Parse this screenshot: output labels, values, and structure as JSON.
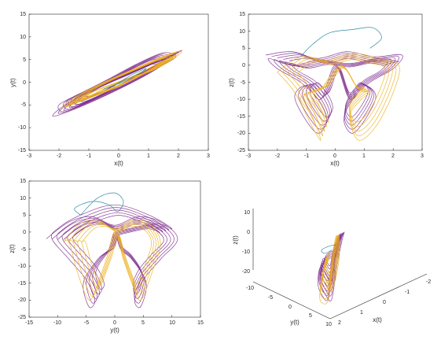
{
  "colors": {
    "purple": "#7E2F8E",
    "orange": "#EDB120",
    "teal": "#1A7F9A"
  },
  "chart_data": [
    {
      "type": "line",
      "xlabel": "x(t)",
      "ylabel": "y(t)",
      "xlim": [
        -3,
        3
      ],
      "ylim": [
        -15,
        15
      ],
      "xticks": [
        "-3",
        "-2",
        "-1",
        "0",
        "1",
        "2",
        "3"
      ],
      "yticks": [
        "-15",
        "-10",
        "-5",
        "0",
        "5",
        "10",
        "15"
      ],
      "series": [
        {
          "color": "purple",
          "x": [
            0.0,
            1.2,
            1.9,
            1.5,
            0.6,
            -0.4,
            -1.3,
            -2.0,
            -1.8,
            -0.9,
            0.1,
            1.1,
            1.8,
            2.1,
            1.4,
            0.2,
            -1.0,
            -1.9,
            -2.2,
            -1.5,
            -0.3,
            0.9,
            1.6,
            1.3,
            0.3,
            -0.8,
            -1.6,
            -1.7,
            -0.8,
            0.0
          ],
          "y": [
            0.0,
            3.0,
            5.5,
            6.5,
            4.0,
            0.5,
            -2.5,
            -5.0,
            -6.5,
            -4.0,
            -0.5,
            3.0,
            5.8,
            7.0,
            5.0,
            1.5,
            -2.0,
            -5.5,
            -7.5,
            -6.0,
            -2.5,
            1.5,
            4.5,
            4.8,
            2.0,
            -1.0,
            -3.5,
            -5.0,
            -3.0,
            0.0
          ]
        },
        {
          "color": "orange",
          "x": [
            0.2,
            1.1,
            1.8,
            2.1,
            1.6,
            0.7,
            -0.5,
            -1.4,
            -1.9,
            -1.6,
            -0.8,
            0.4,
            1.3,
            1.9,
            1.7,
            0.9,
            -0.2,
            -1.2,
            -1.8,
            -1.2,
            0.0
          ],
          "y": [
            0.5,
            2.5,
            5.0,
            6.8,
            6.0,
            3.5,
            0.0,
            -3.0,
            -5.5,
            -5.0,
            -2.5,
            1.0,
            4.0,
            6.0,
            5.0,
            2.0,
            -1.5,
            -4.0,
            -5.5,
            -3.0,
            0.0
          ]
        },
        {
          "color": "teal",
          "x": [
            -0.2,
            0.4,
            0.9,
            0.7,
            0.1,
            -0.5,
            -0.3
          ],
          "y": [
            -1.0,
            1.5,
            3.0,
            2.0,
            0.0,
            -1.5,
            -1.0
          ]
        }
      ]
    },
    {
      "type": "line",
      "xlabel": "x(t)",
      "ylabel": "z(t)",
      "xlim": [
        -3,
        3
      ],
      "ylim": [
        -25,
        15
      ],
      "xticks": [
        "-3",
        "-2",
        "-1",
        "0",
        "1",
        "2",
        "3"
      ],
      "yticks": [
        "-25",
        "-20",
        "-15",
        "-10",
        "-5",
        "0",
        "5",
        "10",
        "15"
      ],
      "series": [
        {
          "color": "purple",
          "x": [
            -2.4,
            -1.5,
            -0.6,
            0.4,
            1.3,
            2.3,
            2.0,
            1.2,
            0.6,
            0.3,
            0.6,
            1.1,
            1.4,
            1.0,
            0.5,
            0.0,
            -0.5,
            -1.0,
            -1.4,
            -1.1,
            -0.6,
            -0.3,
            -0.6,
            -1.2,
            -2.0,
            -2.3,
            -1.5,
            -0.5,
            0.5,
            1.5,
            2.2
          ],
          "y": [
            3.0,
            4.0,
            2.0,
            4.0,
            2.5,
            3.0,
            -1.0,
            -5.0,
            -10.0,
            -16.0,
            -20.0,
            -15.0,
            -9.0,
            -6.0,
            -10.0,
            0.0,
            -10.0,
            -6.0,
            -9.0,
            -15.0,
            -20.0,
            -16.0,
            -10.0,
            -5.0,
            -1.0,
            2.0,
            0.0,
            1.5,
            0.5,
            2.0,
            1.0
          ]
        },
        {
          "color": "orange",
          "x": [
            -2.0,
            -1.2,
            -0.3,
            0.6,
            1.5,
            2.2,
            2.0,
            1.4,
            0.8,
            0.5,
            0.9,
            1.2,
            0.8,
            0.2,
            -0.5,
            -0.9,
            -1.2,
            -0.8,
            -0.5,
            -0.8,
            -1.4,
            -2.0
          ],
          "y": [
            -2.0,
            2.5,
            1.5,
            3.5,
            2.0,
            0.0,
            -8.0,
            -18.0,
            -22.0,
            -15.0,
            -10.0,
            -8.0,
            -7.0,
            0.0,
            -7.0,
            -8.0,
            -10.0,
            -15.0,
            -22.0,
            -18.0,
            -8.0,
            -2.0
          ]
        },
        {
          "color": "teal",
          "x": [
            -1.2,
            -0.8,
            -0.2,
            0.6,
            1.3,
            1.6,
            1.2
          ],
          "y": [
            2.5,
            6.0,
            9.5,
            10.5,
            11.0,
            8.0,
            5.0
          ]
        }
      ]
    },
    {
      "type": "line",
      "xlabel": "y(t)",
      "ylabel": "z(t)",
      "xlim": [
        -15,
        15
      ],
      "ylim": [
        -25,
        15
      ],
      "xticks": [
        "-15",
        "-10",
        "-5",
        "0",
        "5",
        "10",
        "15"
      ],
      "yticks": [
        "-25",
        "-20",
        "-15",
        "-10",
        "-5",
        "0",
        "5",
        "10",
        "15"
      ],
      "series": [
        {
          "color": "purple",
          "x": [
            -12.0,
            -8.0,
            -4.0,
            0.0,
            4.0,
            8.0,
            11.0,
            8.0,
            5.0,
            3.5,
            4.5,
            5.5,
            3.0,
            1.0,
            0.0,
            -1.0,
            -3.0,
            -5.5,
            -4.5,
            -3.5,
            -5.0,
            -8.0,
            -11.0,
            -10.0,
            -6.0,
            0.0,
            6.0,
            10.0,
            7.0,
            0.0
          ],
          "y": [
            -2.0,
            3.0,
            4.5,
            2.0,
            4.5,
            3.0,
            -2.0,
            -8.0,
            -14.0,
            -20.0,
            -22.0,
            -15.0,
            -8.0,
            -5.0,
            0.0,
            -5.0,
            -8.0,
            -15.0,
            -22.0,
            -20.0,
            -14.0,
            -8.0,
            -2.0,
            1.0,
            5.0,
            8.0,
            5.0,
            1.0,
            2.5,
            0.0
          ]
        },
        {
          "color": "orange",
          "x": [
            -9.0,
            -6.0,
            -3.0,
            0.0,
            3.0,
            6.0,
            8.0,
            6.5,
            4.5,
            3.0,
            1.5,
            0.0,
            -1.5,
            -3.0,
            -4.5,
            -6.5,
            -8.0,
            -9.0
          ],
          "y": [
            -3.0,
            2.5,
            3.5,
            1.0,
            3.5,
            2.5,
            -3.0,
            -12.0,
            -20.0,
            -15.0,
            -8.0,
            0.0,
            -8.0,
            -15.0,
            -20.0,
            -12.0,
            -3.0,
            -3.0
          ]
        },
        {
          "color": "teal",
          "x": [
            -6.0,
            -3.0,
            0.0,
            1.5,
            0.5,
            -1.0,
            -4.0,
            -7.0,
            -6.0
          ],
          "y": [
            5.0,
            10.0,
            11.5,
            9.0,
            6.0,
            8.0,
            9.0,
            7.0,
            5.0
          ]
        }
      ]
    },
    {
      "type": "line",
      "projection": "3d",
      "xlabel": "x(t)",
      "ylabel": "y(t)",
      "zlabel": "z(t)",
      "xlim": [
        -2.5,
        2.5
      ],
      "ylim": [
        -10,
        10
      ],
      "zlim": [
        -25,
        10
      ],
      "xticks": [
        "2",
        "1",
        "0",
        "-1",
        "-2"
      ],
      "yticks": [
        "-10",
        "-5",
        "0",
        "5",
        "10"
      ],
      "zticks": [
        "-20",
        "-10",
        "0",
        "10"
      ],
      "series": [
        {
          "color": "purple",
          "x": [
            0.0,
            1.0,
            1.8,
            1.5,
            0.6,
            -0.4,
            -1.3,
            -2.0,
            -1.6,
            -0.7,
            0.3,
            1.2,
            1.9,
            1.4,
            0.3,
            -0.9,
            -1.8,
            -1.2,
            0.0
          ],
          "y": [
            0.0,
            3.0,
            6.0,
            6.5,
            3.5,
            0.0,
            -3.0,
            -6.0,
            -6.5,
            -3.5,
            0.0,
            3.0,
            6.0,
            5.0,
            1.0,
            -3.0,
            -6.0,
            -4.0,
            0.0
          ],
          "z": [
            0.0,
            3.0,
            1.0,
            -8.0,
            -15.0,
            -5.0,
            2.0,
            0.0,
            -9.0,
            -16.0,
            -6.0,
            2.0,
            -1.0,
            -10.0,
            -18.0,
            -7.0,
            -1.0,
            -6.0,
            0.0
          ]
        },
        {
          "color": "orange",
          "x": [
            0.3,
            1.2,
            1.9,
            1.3,
            0.2,
            -0.8,
            -1.7,
            -1.3,
            -0.2,
            0.9,
            1.6,
            0.3
          ],
          "y": [
            1.0,
            4.0,
            6.5,
            4.0,
            0.5,
            -3.0,
            -6.0,
            -4.0,
            -0.5,
            3.0,
            5.5,
            1.0
          ],
          "z": [
            1.0,
            2.0,
            -5.0,
            -14.0,
            -20.0,
            -8.0,
            0.0,
            -10.0,
            -18.0,
            -6.0,
            1.0,
            1.0
          ]
        },
        {
          "color": "teal",
          "x": [
            -0.5,
            0.3,
            1.0,
            0.6,
            -0.2
          ],
          "y": [
            -1.0,
            1.0,
            2.5,
            1.5,
            -0.5
          ],
          "z": [
            4.0,
            8.0,
            10.0,
            6.0,
            3.0
          ]
        }
      ]
    }
  ]
}
